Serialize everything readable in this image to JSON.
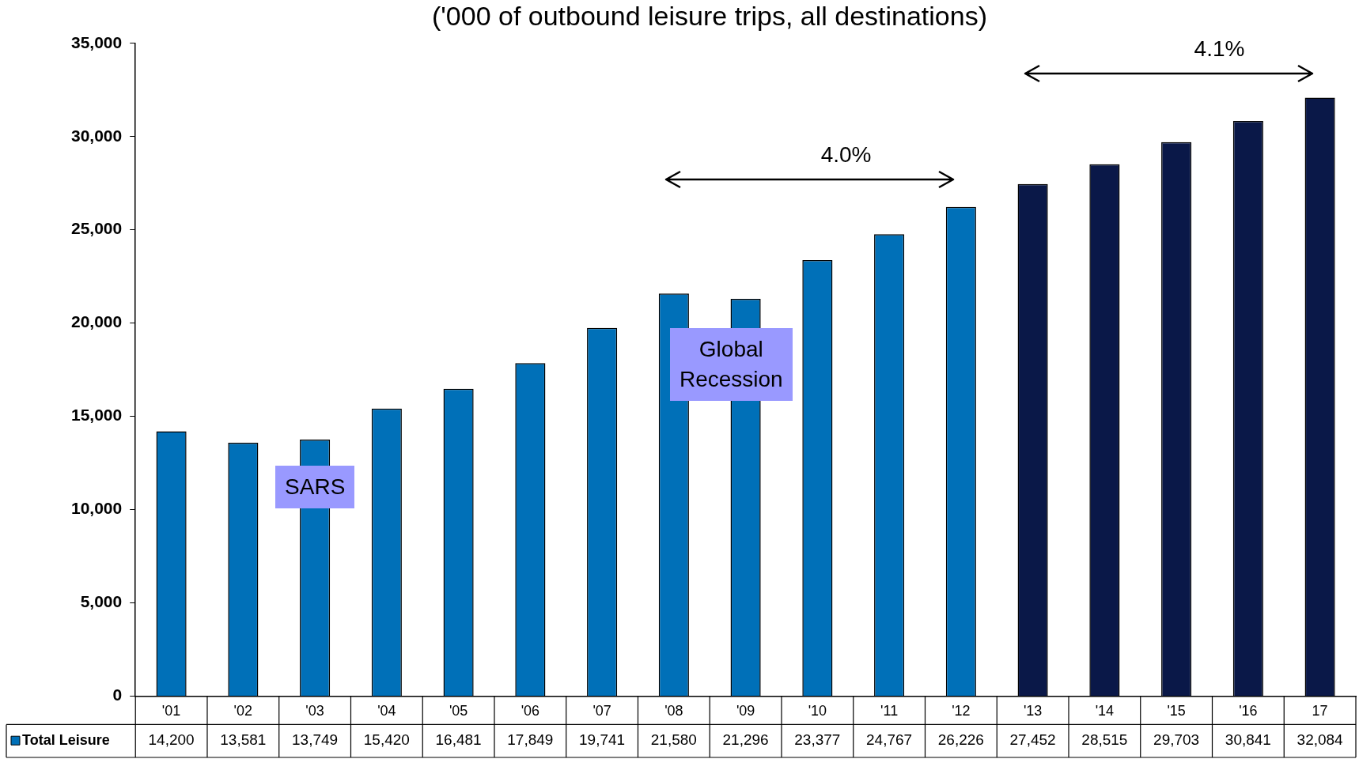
{
  "chart_data": {
    "type": "bar",
    "title": "('000 of outbound leisure trips, all destinations)",
    "categories": [
      "'01",
      "'02",
      "'03",
      "'04",
      "'05",
      "'06",
      "'07",
      "'08",
      "'09",
      "'10",
      "'11",
      "'12",
      "'13",
      "'14",
      "'15",
      "'16",
      "17"
    ],
    "series": [
      {
        "name": "Total Leisure",
        "color": "#0070b8",
        "colors": [
          "#0070b8",
          "#0070b8",
          "#0070b8",
          "#0070b8",
          "#0070b8",
          "#0070b8",
          "#0070b8",
          "#0070b8",
          "#0070b8",
          "#0070b8",
          "#0070b8",
          "#0070b8",
          "#0a1848",
          "#0a1848",
          "#0a1848",
          "#0a1848",
          "#0a1848"
        ],
        "values": [
          14200,
          13581,
          13749,
          15420,
          16481,
          17849,
          19741,
          21580,
          21296,
          23377,
          24767,
          26226,
          27452,
          28515,
          29703,
          30841,
          32084
        ],
        "value_labels": [
          "14,200",
          "13,581",
          "13,749",
          "15,420",
          "16,481",
          "17,849",
          "19,741",
          "21,580",
          "21,296",
          "23,377",
          "24,767",
          "26,226",
          "27,452",
          "28,515",
          "29,703",
          "30,841",
          "32,084"
        ]
      }
    ],
    "ylim": [
      0,
      35000
    ],
    "yticks": [
      {
        "value": 0,
        "label": "0"
      },
      {
        "value": 5000,
        "label": "5,000"
      },
      {
        "value": 10000,
        "label": "10,000"
      },
      {
        "value": 15000,
        "label": "15,000"
      },
      {
        "value": 20000,
        "label": "20,000"
      },
      {
        "value": 25000,
        "label": "25,000"
      },
      {
        "value": 30000,
        "label": "30,000"
      },
      {
        "value": 35000,
        "label": "35,000"
      }
    ],
    "grid": false,
    "legend": "bottom left",
    "annotations": [
      "SARS",
      "Global Recession",
      "4.0%",
      "4.1%"
    ]
  }
}
